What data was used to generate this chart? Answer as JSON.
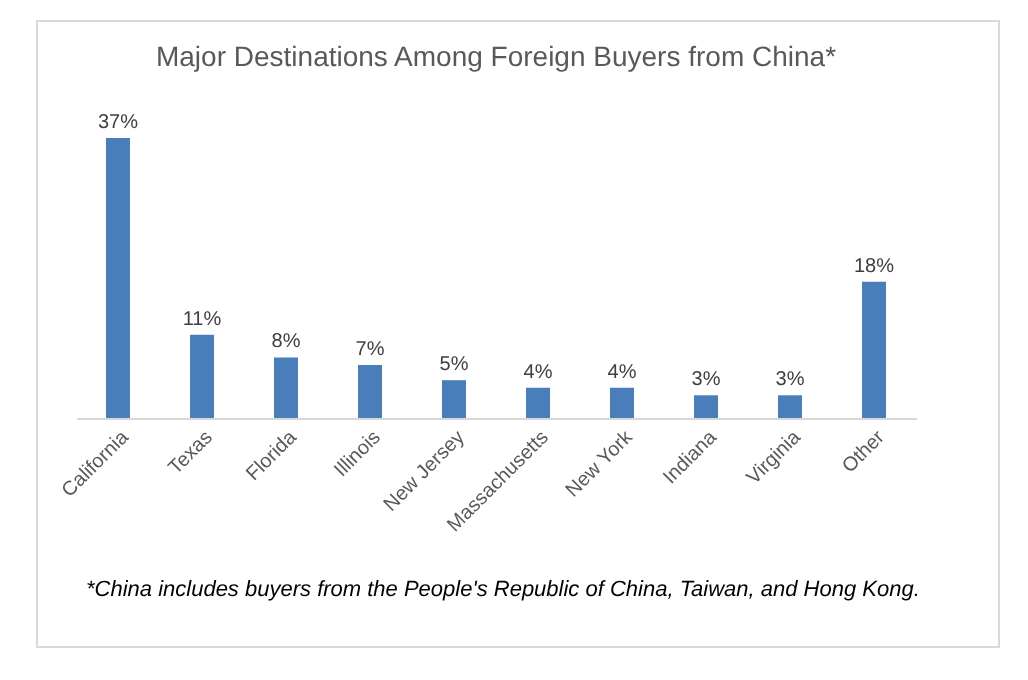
{
  "chart_data": {
    "type": "bar",
    "title": "Major Destinations Among Foreign Buyers from China*",
    "categories": [
      "California",
      "Texas",
      "Florida",
      "Illinois",
      "New Jersey",
      "Massachusetts",
      "New York",
      "Indiana",
      "Virginia",
      "Other"
    ],
    "values": [
      37,
      11,
      8,
      7,
      5,
      4,
      4,
      3,
      3,
      18
    ],
    "value_labels": [
      "37%",
      "11%",
      "8%",
      "7%",
      "5%",
      "4%",
      "4%",
      "3%",
      "3%",
      "18%"
    ],
    "color": "#4a7ebb",
    "annotations": [
      "*China includes buyers from the People's Republic of China, Taiwan, and Hong Kong."
    ]
  }
}
